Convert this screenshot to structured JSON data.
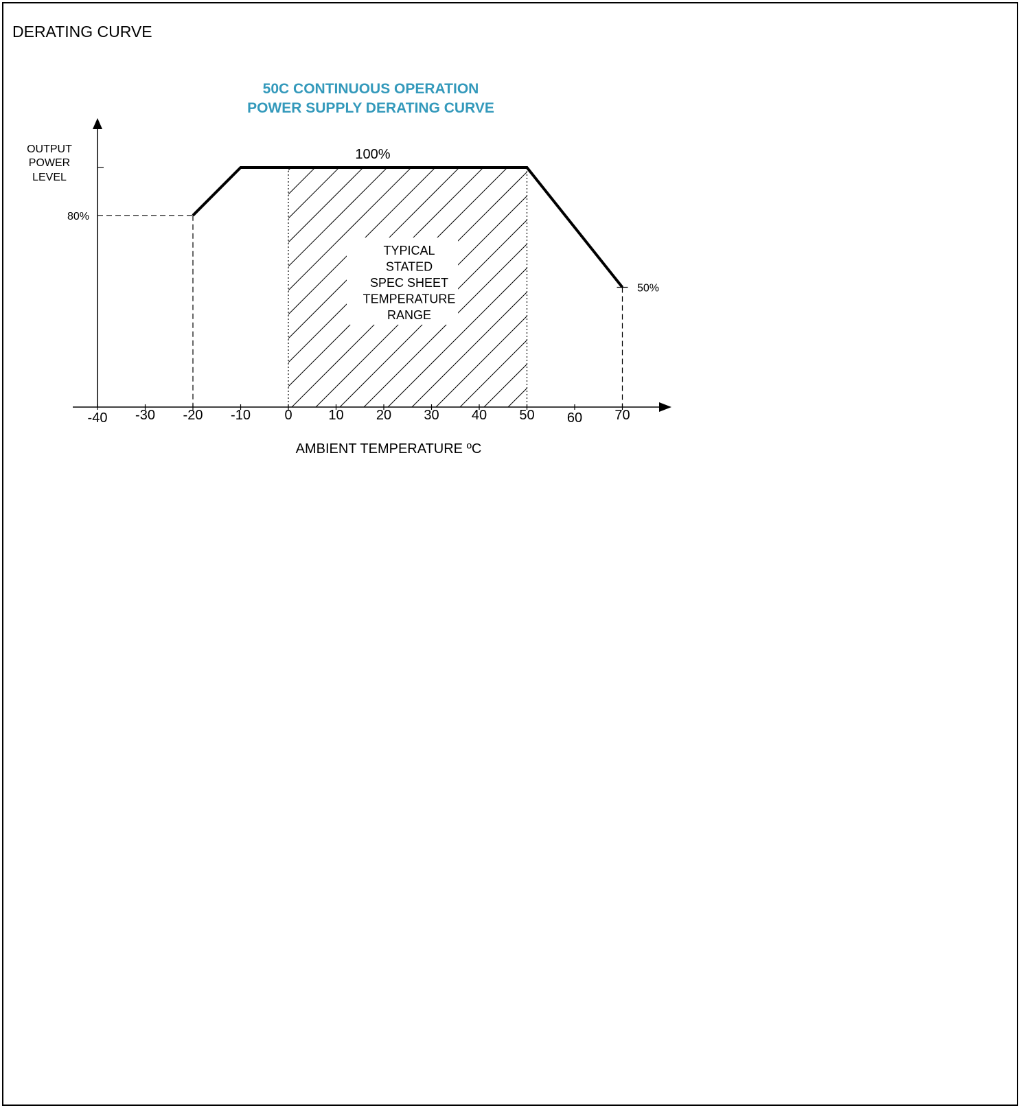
{
  "page": {
    "heading": "DERATING CURVE"
  },
  "chart_data": {
    "type": "line",
    "title": [
      "50C CONTINUOUS OPERATION",
      "POWER SUPPLY DERATING CURVE"
    ],
    "xlabel": "AMBIENT TEMPERATURE ºC",
    "ylabel": [
      "OUTPUT",
      "POWER",
      "LEVEL"
    ],
    "xlim": [
      -40,
      70
    ],
    "ylim": [
      0,
      100
    ],
    "x_ticks": [
      -40,
      -30,
      -20,
      -10,
      0,
      10,
      20,
      30,
      40,
      50,
      60,
      70
    ],
    "series": [
      {
        "x": [
          -20,
          -10,
          50,
          70
        ],
        "y": [
          80,
          100,
          100,
          50
        ]
      }
    ],
    "annotations": {
      "label_100": "100%",
      "label_80": "80%",
      "label_50": "50%",
      "region_text": [
        "TYPICAL",
        "STATED",
        "SPEC SHEET",
        "TEMPERATURE",
        "RANGE"
      ],
      "region_range": [
        0,
        50
      ]
    },
    "colors": {
      "title": "#3399bb",
      "line": "#000000"
    },
    "grid": false
  }
}
